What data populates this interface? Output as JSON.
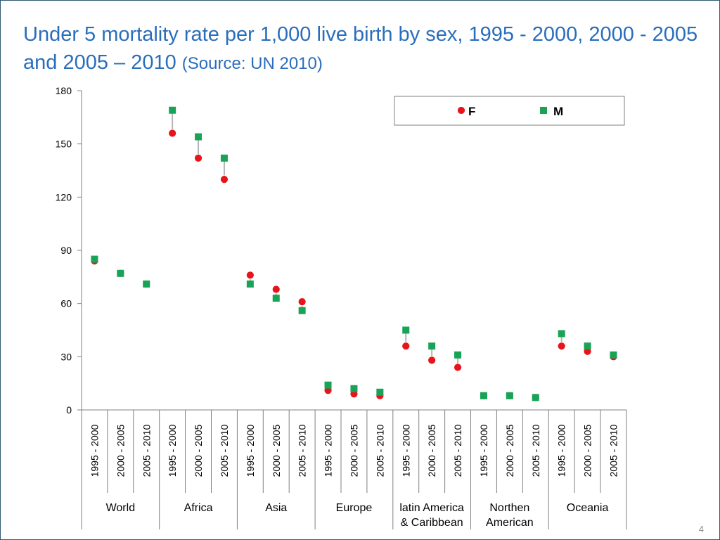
{
  "slide": {
    "title_main": "Under 5 mortality rate per 1,000 live birth by sex, 1995 - 2000, 2000 - 2005 and 2005 – 2010 ",
    "title_source": "(Source: UN 2010)",
    "page_number": "4"
  },
  "colors": {
    "title": "#2a6ebb",
    "female_marker": "#e8141b",
    "male_marker": "#19a357",
    "connector": "#b4b4b4"
  },
  "chart_data": {
    "type": "scatter",
    "title": "Under 5 mortality rate per 1,000 live birth by sex, 1995 - 2000, 2000 - 2005 and 2005 – 2010 (Source: UN 2010)",
    "xlabel": "",
    "ylabel": "",
    "ylim": [
      0,
      180
    ],
    "yticks": [
      0,
      30,
      60,
      90,
      120,
      150,
      180
    ],
    "grid": false,
    "legend_position": "top-right",
    "periods": [
      "1995 - 2000",
      "2000 - 2005",
      "2005 - 2010"
    ],
    "groups": [
      {
        "label": [
          "World"
        ],
        "F": [
          84,
          77,
          71
        ],
        "M": [
          85,
          77,
          71
        ]
      },
      {
        "label": [
          "Africa"
        ],
        "F": [
          156,
          142,
          130
        ],
        "M": [
          169,
          154,
          142
        ]
      },
      {
        "label": [
          "Asia"
        ],
        "F": [
          76,
          68,
          61
        ],
        "M": [
          71,
          63,
          56
        ]
      },
      {
        "label": [
          "Europe"
        ],
        "F": [
          11,
          9,
          8
        ],
        "M": [
          14,
          12,
          10
        ]
      },
      {
        "label": [
          "latin America",
          "& Caribbean"
        ],
        "F": [
          36,
          28,
          24
        ],
        "M": [
          45,
          36,
          31
        ]
      },
      {
        "label": [
          "Northen",
          "American"
        ],
        "F": [
          8,
          8,
          7
        ],
        "M": [
          8,
          8,
          7
        ]
      },
      {
        "label": [
          "Oceania"
        ],
        "F": [
          36,
          33,
          30
        ],
        "M": [
          43,
          36,
          31
        ]
      }
    ],
    "series": [
      {
        "key": "F",
        "name": "F",
        "marker": "circle"
      },
      {
        "key": "M",
        "name": "M",
        "marker": "square"
      }
    ]
  }
}
